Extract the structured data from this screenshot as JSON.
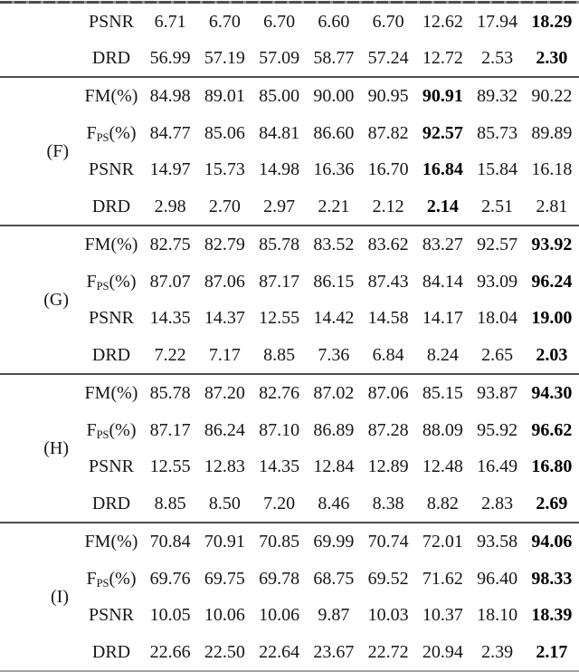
{
  "colors": {
    "rule_dark": "#4d4d4d",
    "rule_light": "#a3a3a3",
    "text": "#161616",
    "bold_text": "#000000"
  },
  "table": {
    "groups": [
      {
        "label": "",
        "rows": [
          {
            "m1": "PSNR",
            "values": [
              "6.71",
              "6.70",
              "6.70",
              "6.60",
              "6.70",
              "12.62",
              "17.94",
              "18.29"
            ],
            "bold_index": 7
          },
          {
            "m1": "DRD",
            "values": [
              "56.99",
              "57.19",
              "57.09",
              "58.77",
              "57.24",
              "12.72",
              "2.53",
              "2.30"
            ],
            "bold_index": 7
          }
        ]
      },
      {
        "label": "(F)",
        "rows": [
          {
            "m1": "FM(%)",
            "values": [
              "84.98",
              "89.01",
              "85.00",
              "90.00",
              "90.95",
              "90.91",
              "89.32",
              "90.22"
            ],
            "bold_index": 5
          },
          {
            "m1": "F",
            "m2": "PS",
            "m3": "(%)",
            "values": [
              "84.77",
              "85.06",
              "84.81",
              "86.60",
              "87.82",
              "92.57",
              "85.73",
              "89.89"
            ],
            "bold_index": 5
          },
          {
            "m1": "PSNR",
            "values": [
              "14.97",
              "15.73",
              "14.98",
              "16.36",
              "16.70",
              "16.84",
              "15.84",
              "16.18"
            ],
            "bold_index": 5
          },
          {
            "m1": "DRD",
            "values": [
              "2.98",
              "2.70",
              "2.97",
              "2.21",
              "2.12",
              "2.14",
              "2.51",
              "2.81"
            ],
            "bold_index": 5
          }
        ]
      },
      {
        "label": "(G)",
        "rows": [
          {
            "m1": "FM(%)",
            "values": [
              "82.75",
              "82.79",
              "85.78",
              "83.52",
              "83.62",
              "83.27",
              "92.57",
              "93.92"
            ],
            "bold_index": 7
          },
          {
            "m1": "F",
            "m2": "PS",
            "m3": "(%)",
            "values": [
              "87.07",
              "87.06",
              "87.17",
              "86.15",
              "87.43",
              "84.14",
              "93.09",
              "96.24"
            ],
            "bold_index": 7
          },
          {
            "m1": "PSNR",
            "values": [
              "14.35",
              "14.37",
              "12.55",
              "14.42",
              "14.58",
              "14.17",
              "18.04",
              "19.00"
            ],
            "bold_index": 7
          },
          {
            "m1": "DRD",
            "values": [
              "7.22",
              "7.17",
              "8.85",
              "7.36",
              "6.84",
              "8.24",
              "2.65",
              "2.03"
            ],
            "bold_index": 7
          }
        ]
      },
      {
        "label": "(H)",
        "rows": [
          {
            "m1": "FM(%)",
            "values": [
              "85.78",
              "87.20",
              "82.76",
              "87.02",
              "87.06",
              "85.15",
              "93.87",
              "94.30"
            ],
            "bold_index": 7
          },
          {
            "m1": "F",
            "m2": "PS",
            "m3": "(%)",
            "values": [
              "87.17",
              "86.24",
              "87.10",
              "86.89",
              "87.28",
              "88.09",
              "95.92",
              "96.62"
            ],
            "bold_index": 7
          },
          {
            "m1": "PSNR",
            "values": [
              "12.55",
              "12.83",
              "14.35",
              "12.84",
              "12.89",
              "12.48",
              "16.49",
              "16.80"
            ],
            "bold_index": 7
          },
          {
            "m1": "DRD",
            "values": [
              "8.85",
              "8.50",
              "7.20",
              "8.46",
              "8.38",
              "8.82",
              "2.83",
              "2.69"
            ],
            "bold_index": 7
          }
        ]
      },
      {
        "label": "(I)",
        "rows": [
          {
            "m1": "FM(%)",
            "values": [
              "70.84",
              "70.91",
              "70.85",
              "69.99",
              "70.74",
              "72.01",
              "93.58",
              "94.06"
            ],
            "bold_index": 7
          },
          {
            "m1": "F",
            "m2": "PS",
            "m3": "(%)",
            "values": [
              "69.76",
              "69.75",
              "69.78",
              "68.75",
              "69.52",
              "71.62",
              "96.40",
              "98.33"
            ],
            "bold_index": 7
          },
          {
            "m1": "PSNR",
            "values": [
              "10.05",
              "10.06",
              "10.06",
              "9.87",
              "10.03",
              "10.37",
              "18.10",
              "18.39"
            ],
            "bold_index": 7
          },
          {
            "m1": "DRD",
            "values": [
              "22.66",
              "22.50",
              "22.64",
              "23.67",
              "22.72",
              "20.94",
              "2.39",
              "2.17"
            ],
            "bold_index": 7
          }
        ]
      }
    ]
  }
}
